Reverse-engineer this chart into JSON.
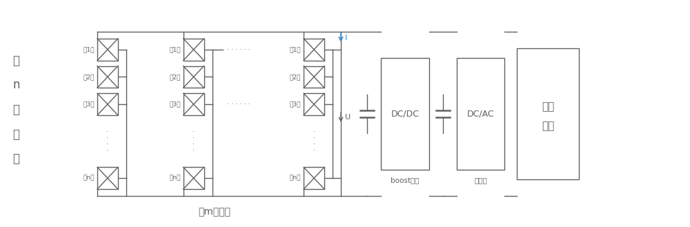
{
  "background_color": "#ffffff",
  "line_color": "#606060",
  "text_color": "#606060",
  "fig_width": 10.0,
  "fig_height": 3.29,
  "left_label_chars": [
    "共",
    "n",
    "块",
    "串",
    "联"
  ],
  "bottom_label": "共m组并联",
  "row_labels": [
    "第1层",
    "第2层",
    "第3层",
    "第n层"
  ],
  "dc_dc_label": "DC/DC",
  "dc_ac_label": "DC/AC",
  "ac_line1": "交流",
  "ac_line2": "电网",
  "boost_label": "boost电路",
  "inverter_label": "逆变器",
  "current_label": "I",
  "voltage_label": "U"
}
